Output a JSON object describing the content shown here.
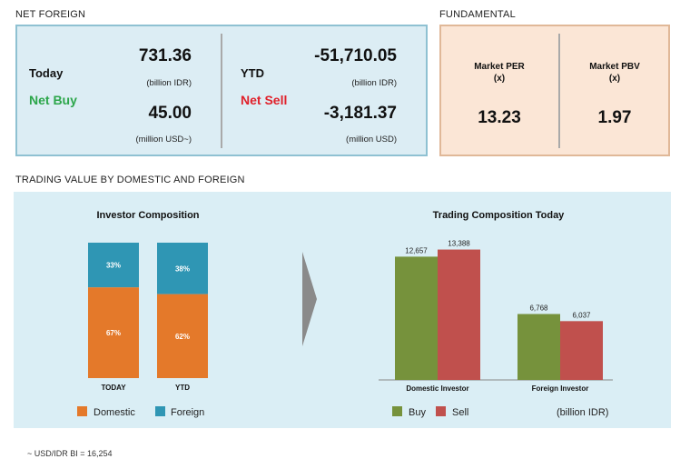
{
  "net_foreign": {
    "section_title": "NET FOREIGN",
    "today": {
      "label": "Today",
      "status": "Net Buy",
      "value_idr": "731.36",
      "unit_idr": "(billion IDR)",
      "value_usd": "45.00",
      "unit_usd": "(million USD~)"
    },
    "ytd": {
      "label": "YTD",
      "status": "Net Sell",
      "value_idr": "-51,710.05",
      "unit_idr": "(billion IDR)",
      "value_usd": "-3,181.37",
      "unit_usd": "(million USD)"
    }
  },
  "fundamental": {
    "section_title": "FUNDAMENTAL",
    "per": {
      "label_line1": "Market PER",
      "label_line2": "(x)",
      "value": "13.23"
    },
    "pbv": {
      "label_line1": "Market PBV",
      "label_line2": "(x)",
      "value": "1.97"
    }
  },
  "trading_section_title": "TRADING VALUE BY DOMESTIC AND FOREIGN",
  "footnote": "~ USD/IDR BI = 16,254",
  "colors": {
    "domestic": "#e4792a",
    "foreign": "#2f96b4",
    "buy": "#76923c",
    "sell": "#c0504d"
  },
  "chart_data": [
    {
      "type": "bar",
      "stacked": true,
      "title": "Investor Composition",
      "categories": [
        "TODAY",
        "YTD"
      ],
      "series": [
        {
          "name": "Domestic",
          "values": [
            67,
            62
          ],
          "labels": [
            "67%",
            "62%"
          ]
        },
        {
          "name": "Foreign",
          "values": [
            33,
            38
          ],
          "labels": [
            "33%",
            "38%"
          ]
        }
      ],
      "ylim": [
        0,
        100
      ],
      "legend": "bottom"
    },
    {
      "type": "bar",
      "title": "Trading Composition Today",
      "categories": [
        "Domestic Investor",
        "Foreign Investor"
      ],
      "series": [
        {
          "name": "Buy",
          "values": [
            12657,
            6768
          ],
          "labels": [
            "12,657",
            "6,768"
          ]
        },
        {
          "name": "Sell",
          "values": [
            13388,
            6037
          ],
          "labels": [
            "13,388",
            "6,037"
          ]
        }
      ],
      "unit_note": "(billion IDR)",
      "ylim": [
        0,
        14000
      ],
      "legend": "bottom"
    }
  ]
}
